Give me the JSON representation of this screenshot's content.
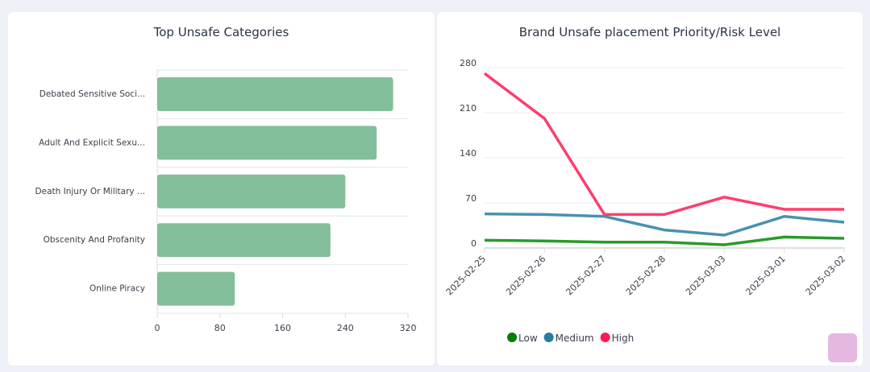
{
  "chart_data": [
    {
      "type": "bar",
      "orientation": "horizontal",
      "title": "Top Unsafe Categories",
      "categories": [
        "Debated Sensitive Soci...",
        "Adult And Explicit Sexu...",
        "Death Injury Or Military ...",
        "Obscenity And Profanity",
        "Online Piracy"
      ],
      "values": [
        301,
        280,
        240,
        221,
        99
      ],
      "xlim": [
        0,
        320
      ],
      "xticks": [
        "0",
        "80",
        "160",
        "240",
        "320"
      ],
      "grid": true,
      "color": "#82be99"
    },
    {
      "type": "line",
      "title": "Brand Unsafe placement Priority/Risk Level",
      "categories": [
        "2025-02-25",
        "2025-02-26",
        "2025-02-27",
        "2025-02-28",
        "2025-03-03",
        "2025-03-01",
        "2025-03-02"
      ],
      "ylim": [
        0,
        280
      ],
      "yticks": [
        "0",
        "70",
        "140",
        "210",
        "280"
      ],
      "grid": true,
      "legend_placement": "bottom-left",
      "series": [
        {
          "name": "Low",
          "values": [
            12,
            11,
            9,
            9,
            5,
            17,
            15
          ],
          "color": "#2a9a2a",
          "legend_color": "#008000"
        },
        {
          "name": "Medium",
          "values": [
            53,
            52,
            49,
            28,
            20,
            49,
            40
          ],
          "color": "#4a91b0",
          "legend_color": "#267ea0"
        },
        {
          "name": "High",
          "values": [
            271,
            201,
            52,
            52,
            79,
            60,
            60
          ],
          "color": "#ff3d6f",
          "legend_color": "#ff1a55"
        }
      ]
    }
  ],
  "fab_color": "#e4b8e0"
}
